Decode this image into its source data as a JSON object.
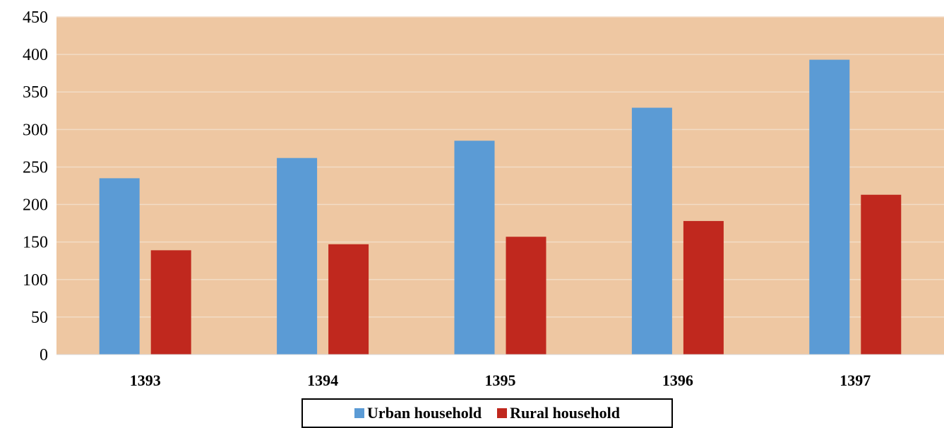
{
  "chart_data": {
    "type": "bar",
    "title": "",
    "xlabel": "",
    "ylabel": "",
    "categories": [
      "1393",
      "1394",
      "1395",
      "1396",
      "1397"
    ],
    "series": [
      {
        "name": "Urban household",
        "color": "#5B9BD5",
        "values": [
          235,
          262,
          285,
          329,
          393
        ]
      },
      {
        "name": "Rural household",
        "color": "#C0281E",
        "values": [
          139,
          147,
          157,
          178,
          213
        ]
      }
    ],
    "ylim": [
      0,
      450
    ],
    "yticks": [
      0,
      50,
      100,
      150,
      200,
      250,
      300,
      350,
      400,
      450
    ],
    "grid": true,
    "plot_background": "#EEC7A2",
    "legend_position": "bottom"
  }
}
